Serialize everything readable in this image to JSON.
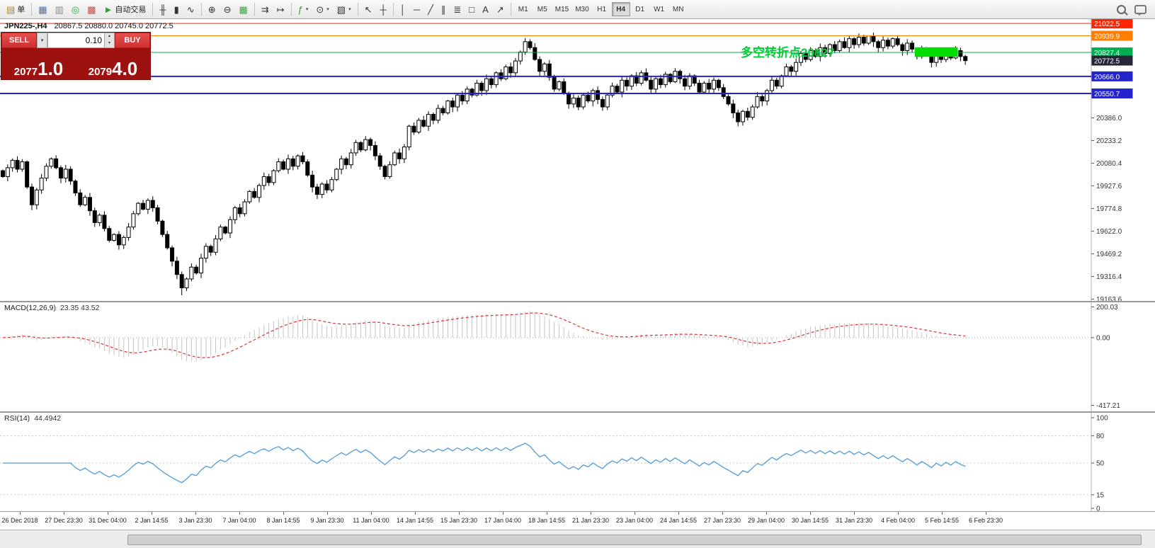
{
  "toolbar": {
    "dropdown_glyph": "▾",
    "items": [
      {
        "name": "new-order-button",
        "glyph": "▤",
        "glyph_color": "#b8860b",
        "label": "单"
      },
      {
        "sep": true
      },
      {
        "name": "market-watch-icon",
        "glyph": "▦",
        "glyph_color": "#3a6ecc"
      },
      {
        "name": "data-window-icon",
        "glyph": "▥",
        "glyph_color": "#888888"
      },
      {
        "name": "navigator-icon",
        "glyph": "◎",
        "glyph_color": "#2e9e4f"
      },
      {
        "name": "terminal-icon",
        "glyph": "▩",
        "glyph_color": "#c05050"
      },
      {
        "name": "autotrading-button",
        "glyph": "►",
        "glyph_color": "#1faa1f",
        "label": "自动交易"
      },
      {
        "sep": true
      },
      {
        "name": "ohlc-bars-button",
        "glyph": "╫"
      },
      {
        "name": "candlestick-chart-button",
        "glyph": "▮"
      },
      {
        "name": "line-chart-button",
        "glyph": "∿"
      },
      {
        "sep": true
      },
      {
        "name": "zoom-in-button",
        "glyph": "⊕"
      },
      {
        "name": "zoom-out-button",
        "glyph": "⊖"
      },
      {
        "name": "tile-windows-button",
        "glyph": "▦",
        "glyph_color": "#3f9e3f"
      },
      {
        "sep": true
      },
      {
        "name": "auto-scroll-button",
        "glyph": "⇉"
      },
      {
        "name": "chart-shift-button",
        "glyph": "↦"
      },
      {
        "sep": true
      },
      {
        "name": "indicators-button",
        "glyph": "ƒ",
        "glyph_color": "#1faa1f",
        "dropdown": true
      },
      {
        "name": "periods-button",
        "glyph": "⊙",
        "dropdown": true
      },
      {
        "name": "templates-button",
        "glyph": "▧",
        "dropdown": true
      },
      {
        "sep": true
      },
      {
        "name": "cursor-button",
        "glyph": "↖"
      },
      {
        "name": "crosshair-button",
        "glyph": "┼"
      },
      {
        "sep": true
      },
      {
        "name": "vertical-line-button",
        "glyph": "│"
      },
      {
        "name": "horizontal-line-button",
        "glyph": "─"
      },
      {
        "name": "trendline-button",
        "glyph": "╱"
      },
      {
        "name": "equidistant-channel-button",
        "glyph": "∥"
      },
      {
        "name": "fibonacci-button",
        "glyph": "≣"
      },
      {
        "name": "shapes-button",
        "glyph": "□"
      },
      {
        "name": "text-label-button",
        "glyph": "A"
      },
      {
        "name": "arrow-objects-button",
        "glyph": "↗"
      },
      {
        "sep": true
      }
    ],
    "timeframes": [
      "M1",
      "M5",
      "M15",
      "M30",
      "H1",
      "H4",
      "D1",
      "W1",
      "MN"
    ],
    "active_timeframe": "H4"
  },
  "chart": {
    "symbol_period": "JPN225-,H4",
    "ohlc_text": "20867.5 20880.0 20745.0 20772.5"
  },
  "trade_panel": {
    "sell_label": "SELL",
    "buy_label": "BUY",
    "lot": "0.10",
    "sell_price": "20771.0",
    "buy_price": "20794.0",
    "dropdown_glyph": "▾",
    "spin_up_glyph": "▴",
    "spin_down_glyph": "▾"
  },
  "chart_data": [
    {
      "type": "candlestick",
      "title": "JPN225-,H4",
      "ohlc_display": {
        "open": 20867.5,
        "high": 20880.0,
        "low": 20745.0,
        "close": 20772.5
      },
      "price_axis_range": [
        19152,
        21052
      ],
      "closes": [
        19990,
        20050,
        20100,
        20040,
        20090,
        19920,
        19800,
        19900,
        19980,
        20060,
        20110,
        20050,
        19980,
        20040,
        19960,
        19880,
        19800,
        19850,
        19760,
        19680,
        19730,
        19640,
        19560,
        19600,
        19530,
        19580,
        19650,
        19740,
        19810,
        19770,
        19830,
        19780,
        19690,
        19600,
        19510,
        19420,
        19330,
        19240,
        19300,
        19380,
        19340,
        19440,
        19520,
        19480,
        19570,
        19650,
        19610,
        19700,
        19780,
        19740,
        19820,
        19890,
        19850,
        19930,
        19990,
        19950,
        20030,
        20090,
        20040,
        20110,
        20060,
        20130,
        20090,
        20000,
        19920,
        19870,
        19940,
        19900,
        19970,
        20040,
        20110,
        20070,
        20150,
        20220,
        20170,
        20240,
        20200,
        20130,
        20060,
        19990,
        20070,
        20150,
        20110,
        20190,
        20330,
        20290,
        20370,
        20330,
        20410,
        20370,
        20450,
        20420,
        20500,
        20460,
        20540,
        20500,
        20580,
        20540,
        20620,
        20570,
        20650,
        20610,
        20690,
        20650,
        20730,
        20690,
        20770,
        20830,
        20900,
        20860,
        20780,
        20700,
        20750,
        20660,
        20580,
        20630,
        20550,
        20480,
        20520,
        20460,
        20540,
        20500,
        20570,
        20510,
        20460,
        20540,
        20600,
        20560,
        20640,
        20600,
        20670,
        20620,
        20690,
        20640,
        20580,
        20650,
        20610,
        20680,
        20630,
        20700,
        20650,
        20600,
        20670,
        20620,
        20560,
        20620,
        20580,
        20640,
        20590,
        20530,
        20480,
        20420,
        20360,
        20430,
        20390,
        20460,
        20530,
        20500,
        20570,
        20640,
        20600,
        20670,
        20730,
        20700,
        20760,
        20820,
        20780,
        20840,
        20800,
        20860,
        20820,
        20880,
        20840,
        20900,
        20860,
        20920,
        20880,
        20930,
        20890,
        20940,
        20900,
        20860,
        20910,
        20870,
        20920,
        20880,
        20840,
        20890,
        20850,
        20800,
        20850,
        20810,
        20760,
        20820,
        20780,
        20830,
        20790,
        20840,
        20800,
        20772
      ],
      "extremes": {
        "min_low": {
          "index": 37,
          "price": 19190
        },
        "max_high": {
          "index": 179,
          "price": 20942
        }
      },
      "horizontal_lines": [
        {
          "price": 21022.5,
          "color": "#ff2600",
          "label": "21022.5",
          "width": 1
        },
        {
          "price": 20939.9,
          "color": "#ff7d00",
          "label": "20939.9",
          "width": 1
        },
        {
          "price": 20827.4,
          "color": "#00b050",
          "label": "20827.4",
          "width": 1
        },
        {
          "price": 20772.5,
          "color": "#26263a",
          "label": "20772.5",
          "current": true
        },
        {
          "price": 20666.0,
          "color": "#2424cc",
          "label": "20666.0",
          "width": 2
        },
        {
          "price": 20550.7,
          "color": "#2424cc",
          "label": "20550.7",
          "width": 2
        }
      ],
      "scale_ticks": [
        20386.0,
        20233.2,
        20080.4,
        19927.6,
        19774.8,
        19622.0,
        19469.2,
        19316.4,
        19163.6
      ],
      "highlight_box": {
        "start_index": 189,
        "end_index": 197,
        "price_top": 20862,
        "price_bottom": 20798,
        "color": "#00dd00"
      },
      "annotation": {
        "text": "多空转折点20827",
        "color": "#00cc33"
      }
    },
    {
      "type": "macd",
      "label": "MACD(12,26,9)",
      "values_text": "23.35 43.52",
      "params": [
        12,
        26,
        9
      ],
      "axis_labels": [
        "200.03",
        "0.00",
        "-417.21"
      ],
      "range": [
        -417.21,
        200.03
      ],
      "histogram_color": "#c4c4c4",
      "signal_color": "#e03131"
    },
    {
      "type": "rsi",
      "label": "RSI(14)",
      "value_text": "44.4942",
      "period": 14,
      "axis_labels": [
        "100",
        "80",
        "50",
        "15",
        "0"
      ],
      "levels": [
        80,
        50,
        15
      ],
      "range": [
        0,
        100
      ],
      "line_color": "#4f9bd8"
    }
  ],
  "time_axis": {
    "labels": [
      "26 Dec 2018",
      "27 Dec 23:30",
      "31 Dec 04:00",
      "2 Jan 14:55",
      "3 Jan 23:30",
      "7 Jan 04:00",
      "8 Jan 14:55",
      "9 Jan 23:30",
      "11 Jan 04:00",
      "14 Jan 14:55",
      "15 Jan 23:30",
      "17 Jan 04:00",
      "18 Jan 14:55",
      "21 Jan 23:30",
      "23 Jan 04:00",
      "24 Jan 14:55",
      "27 Jan 23:30",
      "29 Jan 04:00",
      "30 Jan 14:55",
      "31 Jan 23:30",
      "4 Feb 04:00",
      "5 Feb 14:55",
      "6 Feb 23:30"
    ]
  }
}
